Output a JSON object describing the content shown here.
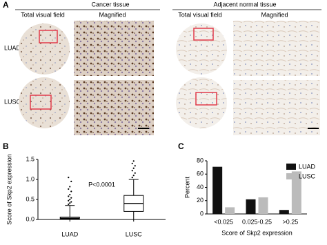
{
  "panel_a": {
    "label": "A",
    "groups": [
      "Cancer tissue",
      "Adjacent normal tissue"
    ],
    "column_headers": [
      "Total visual field",
      "Magnified",
      "Total visual field",
      "Magnified"
    ],
    "rows": [
      "LUAD",
      "LUSC"
    ]
  },
  "chart_data": [
    {
      "type": "box",
      "panel_label": "B",
      "ylabel": "Score of Skp2 expression",
      "annotation": "P<0.0001",
      "categories": [
        "LUAD",
        "LUSC"
      ],
      "color": "#000000",
      "ylim": [
        0,
        1.5
      ],
      "yticks": [
        {
          "value": 0,
          "label": "0.0"
        },
        0.5,
        {
          "value": 1,
          "label": "1.0"
        },
        1.5
      ],
      "boxes": [
        {
          "whisker_low": 0,
          "q1": 0.01,
          "median": 0.03,
          "q3": 0.06,
          "whisker_high": 0.35,
          "outliers": [
            0.38,
            0.41,
            0.44,
            0.47,
            0.5,
            0.54,
            0.58,
            0.62,
            0.7,
            0.76,
            0.82,
            0.95,
            1.05
          ]
        },
        {
          "whisker_low": 0,
          "q1": 0.2,
          "median": 0.4,
          "q3": 0.6,
          "whisker_high": 1.0,
          "outliers": [
            1.05,
            1.1,
            1.16,
            1.22,
            1.28,
            1.34,
            1.4,
            1.46
          ]
        }
      ]
    },
    {
      "type": "bar",
      "panel_label": "C",
      "ylabel": "Percent",
      "xlabel": "Score of Skp2 expression",
      "categories": [
        "<0.025",
        "0.025-0.25",
        ">0.25"
      ],
      "series": [
        {
          "name": "LUAD",
          "color": "#111111",
          "values": [
            71,
            22,
            6
          ]
        },
        {
          "name": "LUSC",
          "color": "#bbbbbb",
          "values": [
            10,
            25,
            64
          ]
        }
      ],
      "ylim": [
        0,
        80
      ],
      "yticks": [
        0,
        20,
        40,
        60,
        80
      ],
      "legend": "top-right"
    }
  ]
}
